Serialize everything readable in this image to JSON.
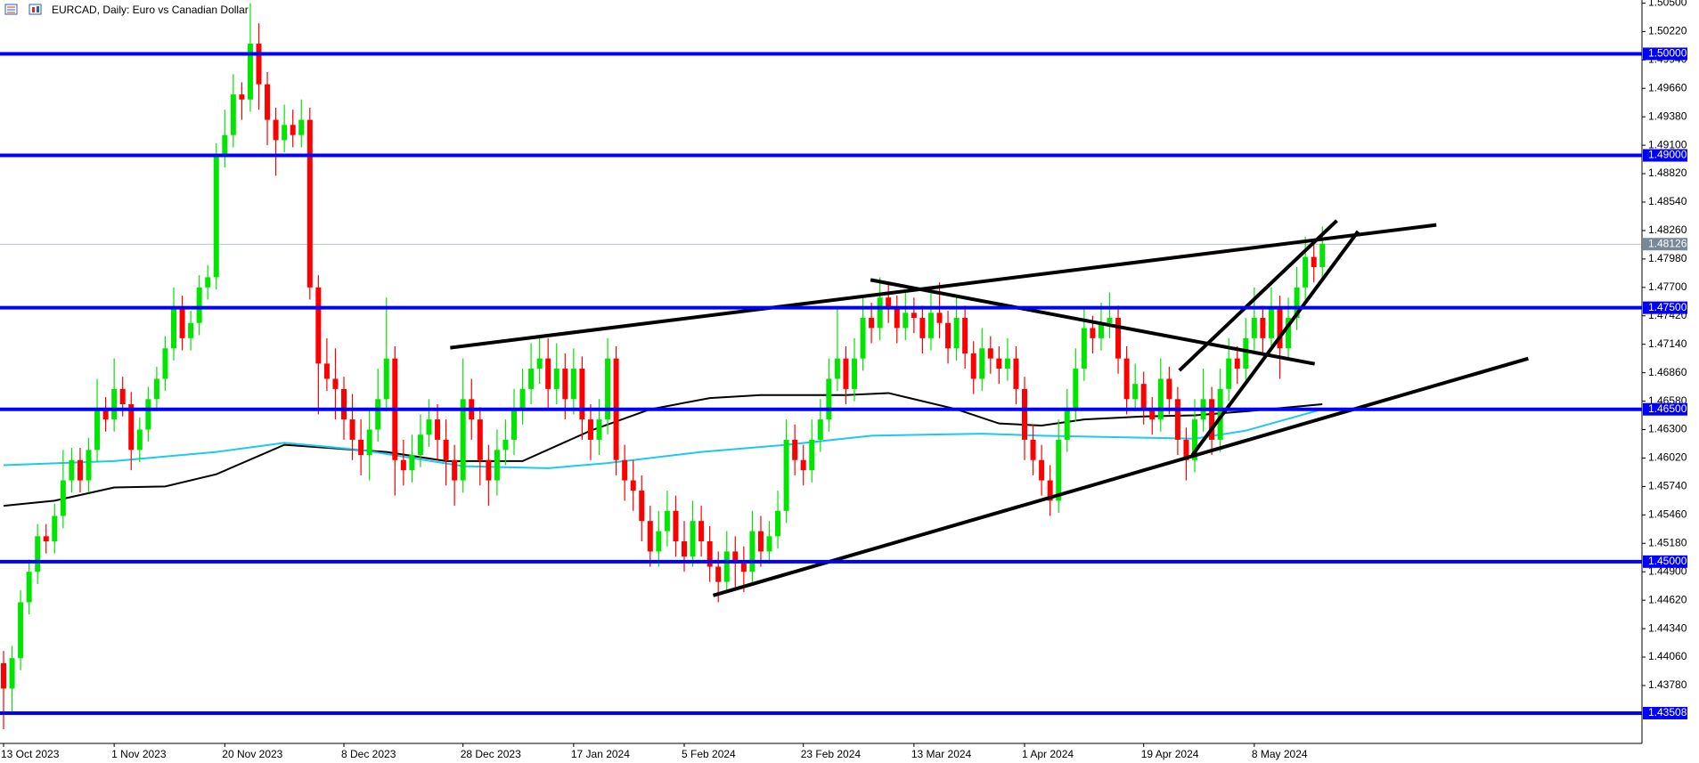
{
  "chart_data": {
    "type": "candlestick",
    "title": "EURCAD, Daily:  Euro vs Canadian Dollar",
    "categories": [
      "13 Oct 2023",
      null,
      null,
      null,
      null,
      null,
      null,
      null,
      null,
      null,
      null,
      null,
      null,
      "1 Nov 2023",
      null,
      null,
      null,
      null,
      null,
      null,
      null,
      null,
      null,
      null,
      null,
      null,
      "20 Nov 2023",
      null,
      null,
      null,
      null,
      null,
      null,
      null,
      null,
      null,
      null,
      null,
      null,
      null,
      "8 Dec 2023",
      null,
      null,
      null,
      null,
      null,
      null,
      null,
      null,
      null,
      null,
      null,
      null,
      null,
      "28 Dec 2023",
      null,
      null,
      null,
      null,
      null,
      null,
      null,
      null,
      null,
      null,
      null,
      null,
      "17 Jan 2024",
      null,
      null,
      null,
      null,
      null,
      null,
      null,
      null,
      null,
      null,
      null,
      null,
      "5 Feb 2024",
      null,
      null,
      null,
      null,
      null,
      null,
      null,
      null,
      null,
      null,
      null,
      null,
      null,
      "23 Feb 2024",
      null,
      null,
      null,
      null,
      null,
      null,
      null,
      null,
      null,
      null,
      null,
      null,
      "13 Mar 2024",
      null,
      null,
      null,
      null,
      null,
      null,
      null,
      null,
      null,
      null,
      null,
      null,
      "1 Apr 2024",
      null,
      null,
      null,
      null,
      null,
      null,
      null,
      null,
      null,
      null,
      null,
      null,
      null,
      "19 Apr 2024",
      null,
      null,
      null,
      null,
      null,
      null,
      null,
      null,
      null,
      null,
      null,
      null,
      "8 May 2024",
      null,
      null,
      null,
      null,
      null,
      null,
      null,
      null
    ],
    "candles": {
      "open": [
        1.44,
        1.4375,
        1.4405,
        1.446,
        1.449,
        1.4525,
        1.452,
        1.4545,
        1.458,
        1.46,
        1.458,
        1.461,
        1.465,
        1.464,
        1.467,
        1.4655,
        1.461,
        1.463,
        1.466,
        1.468,
        1.471,
        1.475,
        1.472,
        1.4735,
        1.477,
        1.478,
        1.49,
        1.492,
        1.496,
        1.4955,
        1.501,
        1.497,
        1.4935,
        1.4915,
        1.493,
        1.492,
        1.4935,
        1.477,
        1.4695,
        1.468,
        1.467,
        1.464,
        1.462,
        1.4605,
        1.463,
        1.466,
        1.47,
        1.46,
        1.459,
        1.4605,
        1.4625,
        1.464,
        1.462,
        1.46,
        1.458,
        1.466,
        1.464,
        1.46,
        1.458,
        1.461,
        1.462,
        1.465,
        1.467,
        1.469,
        1.47,
        1.467,
        1.469,
        1.466,
        1.469,
        1.464,
        1.462,
        1.464,
        1.47,
        1.46,
        1.458,
        1.457,
        1.454,
        1.451,
        1.453,
        1.455,
        1.452,
        1.4505,
        1.454,
        1.452,
        1.4495,
        1.448,
        1.451,
        1.45,
        1.449,
        1.453,
        1.451,
        1.4525,
        1.455,
        1.462,
        1.46,
        1.459,
        1.462,
        1.464,
        1.468,
        1.47,
        1.467,
        1.47,
        1.474,
        1.473,
        1.476,
        1.475,
        1.473,
        1.4745,
        1.474,
        1.472,
        1.4745,
        1.4735,
        1.471,
        1.474,
        1.4705,
        1.468,
        1.471,
        1.47,
        1.469,
        1.47,
        1.467,
        1.462,
        1.46,
        1.458,
        1.456,
        1.462,
        1.465,
        1.469,
        1.473,
        1.472,
        1.4735,
        1.474,
        1.47,
        1.466,
        1.4675,
        1.465,
        1.464,
        1.468,
        1.466,
        1.462,
        1.46,
        1.464,
        1.466,
        1.462,
        1.467,
        1.47,
        1.469,
        1.472,
        1.474,
        1.472,
        1.475,
        1.471,
        1.474,
        1.477,
        1.48,
        1.479
      ],
      "high": [
        1.4412,
        1.4417,
        1.4472,
        1.4502,
        1.4537,
        1.4537,
        1.4557,
        1.461,
        1.4612,
        1.4612,
        1.4622,
        1.468,
        1.4662,
        1.47,
        1.4682,
        1.4667,
        1.4642,
        1.4672,
        1.4692,
        1.4722,
        1.477,
        1.4762,
        1.4747,
        1.4782,
        1.4792,
        1.4912,
        1.4945,
        1.498,
        1.4972,
        1.505,
        1.503,
        1.4982,
        1.4947,
        1.495,
        1.4945,
        1.4955,
        1.4947,
        1.4782,
        1.472,
        1.471,
        1.4682,
        1.4665,
        1.464,
        1.465,
        1.469,
        1.476,
        1.4712,
        1.462,
        1.4625,
        1.4645,
        1.466,
        1.4655,
        1.464,
        1.4615,
        1.47,
        1.468,
        1.4652,
        1.4615,
        1.463,
        1.464,
        1.467,
        1.469,
        1.4715,
        1.472,
        1.472,
        1.4715,
        1.4705,
        1.471,
        1.4702,
        1.4655,
        1.466,
        1.472,
        1.4712,
        1.4615,
        1.46,
        1.4585,
        1.4555,
        1.455,
        1.457,
        1.4565,
        1.454,
        1.456,
        1.4555,
        1.4535,
        1.451,
        1.453,
        1.4525,
        1.4515,
        1.455,
        1.4545,
        1.454,
        1.457,
        1.464,
        1.4635,
        1.4615,
        1.464,
        1.466,
        1.47,
        1.475,
        1.4712,
        1.472,
        1.476,
        1.4755,
        1.478,
        1.4775,
        1.4762,
        1.4765,
        1.476,
        1.4752,
        1.4765,
        1.4775,
        1.4747,
        1.476,
        1.4752,
        1.4717,
        1.473,
        1.4722,
        1.4712,
        1.472,
        1.4712,
        1.4682,
        1.4635,
        1.4615,
        1.4595,
        1.464,
        1.467,
        1.471,
        1.475,
        1.4742,
        1.4755,
        1.4765,
        1.4752,
        1.4712,
        1.4695,
        1.4687,
        1.4662,
        1.47,
        1.4692,
        1.4672,
        1.4632,
        1.466,
        1.469,
        1.4672,
        1.469,
        1.472,
        1.4712,
        1.474,
        1.477,
        1.4752,
        1.477,
        1.4762,
        1.476,
        1.479,
        1.482,
        1.4815,
        1.483
      ],
      "low": [
        1.4335,
        1.435,
        1.4393,
        1.4448,
        1.4478,
        1.4508,
        1.4508,
        1.4533,
        1.4568,
        1.4568,
        1.4568,
        1.4598,
        1.4628,
        1.4628,
        1.4643,
        1.459,
        1.4598,
        1.4618,
        1.4648,
        1.4668,
        1.4698,
        1.4708,
        1.4708,
        1.4723,
        1.4758,
        1.4768,
        1.4888,
        1.4908,
        1.4935,
        1.4943,
        1.4945,
        1.491,
        1.488,
        1.4903,
        1.4908,
        1.4908,
        1.4758,
        1.4645,
        1.4668,
        1.464,
        1.462,
        1.46,
        1.4585,
        1.458,
        1.4618,
        1.4648,
        1.4565,
        1.4575,
        1.4578,
        1.4593,
        1.4613,
        1.46,
        1.4575,
        1.4555,
        1.4568,
        1.462,
        1.4575,
        1.4555,
        1.4565,
        1.4595,
        1.4605,
        1.4635,
        1.4655,
        1.4675,
        1.465,
        1.4655,
        1.464,
        1.4645,
        1.462,
        1.46,
        1.4605,
        1.4625,
        1.4585,
        1.456,
        1.455,
        1.452,
        1.4495,
        1.4495,
        1.4515,
        1.4505,
        1.449,
        1.4495,
        1.4505,
        1.448,
        1.446,
        1.447,
        1.4475,
        1.447,
        1.4478,
        1.4495,
        1.4498,
        1.4513,
        1.4538,
        1.4585,
        1.4575,
        1.4578,
        1.4608,
        1.4628,
        1.4668,
        1.4655,
        1.4658,
        1.4688,
        1.4715,
        1.4718,
        1.4735,
        1.4715,
        1.4718,
        1.4725,
        1.4705,
        1.4708,
        1.472,
        1.4695,
        1.4698,
        1.469,
        1.4665,
        1.4668,
        1.4685,
        1.4675,
        1.4678,
        1.4655,
        1.46,
        1.4585,
        1.4565,
        1.4545,
        1.4548,
        1.4608,
        1.4638,
        1.4678,
        1.4705,
        1.4708,
        1.472,
        1.4685,
        1.4645,
        1.4648,
        1.4635,
        1.4625,
        1.4628,
        1.4645,
        1.4605,
        1.458,
        1.4588,
        1.4628,
        1.4605,
        1.4608,
        1.4658,
        1.4675,
        1.4678,
        1.4708,
        1.4705,
        1.4708,
        1.468,
        1.4698,
        1.4728,
        1.4758,
        1.4775,
        1.4778
      ],
      "close": [
        1.4375,
        1.4405,
        1.446,
        1.449,
        1.4525,
        1.452,
        1.4545,
        1.458,
        1.46,
        1.458,
        1.461,
        1.465,
        1.464,
        1.467,
        1.4655,
        1.461,
        1.463,
        1.466,
        1.468,
        1.471,
        1.475,
        1.472,
        1.4735,
        1.477,
        1.478,
        1.49,
        1.492,
        1.496,
        1.4955,
        1.501,
        1.497,
        1.4935,
        1.4915,
        1.493,
        1.492,
        1.4935,
        1.477,
        1.4695,
        1.468,
        1.467,
        1.464,
        1.462,
        1.4605,
        1.463,
        1.466,
        1.47,
        1.46,
        1.459,
        1.4605,
        1.4625,
        1.464,
        1.462,
        1.46,
        1.458,
        1.466,
        1.464,
        1.46,
        1.458,
        1.461,
        1.462,
        1.465,
        1.467,
        1.469,
        1.47,
        1.467,
        1.469,
        1.466,
        1.469,
        1.464,
        1.462,
        1.464,
        1.47,
        1.46,
        1.458,
        1.457,
        1.454,
        1.451,
        1.453,
        1.455,
        1.452,
        1.4505,
        1.454,
        1.452,
        1.4495,
        1.448,
        1.451,
        1.45,
        1.449,
        1.453,
        1.451,
        1.4525,
        1.455,
        1.462,
        1.46,
        1.459,
        1.462,
        1.464,
        1.468,
        1.47,
        1.467,
        1.47,
        1.474,
        1.473,
        1.476,
        1.475,
        1.473,
        1.4745,
        1.474,
        1.472,
        1.4745,
        1.4735,
        1.471,
        1.474,
        1.4705,
        1.468,
        1.471,
        1.47,
        1.469,
        1.47,
        1.467,
        1.462,
        1.46,
        1.458,
        1.456,
        1.462,
        1.465,
        1.469,
        1.473,
        1.472,
        1.4735,
        1.474,
        1.47,
        1.466,
        1.4675,
        1.465,
        1.464,
        1.468,
        1.466,
        1.462,
        1.46,
        1.464,
        1.466,
        1.462,
        1.467,
        1.47,
        1.469,
        1.472,
        1.474,
        1.472,
        1.475,
        1.471,
        1.474,
        1.477,
        1.48,
        1.479,
        1.4813
      ]
    },
    "up_color": "#00e600",
    "down_color": "#ff0000",
    "ylim": [
      1.4321,
      1.5053
    ],
    "yticks": [
      {
        "value": 1.505,
        "label": "1.50500"
      },
      {
        "value": 1.5022,
        "label": "1.50220"
      },
      {
        "value": 1.4994,
        "label": "1.49940"
      },
      {
        "value": 1.4966,
        "label": "1.49660"
      },
      {
        "value": 1.4938,
        "label": "1.49380"
      },
      {
        "value": 1.491,
        "label": "1.49100"
      },
      {
        "value": 1.4882,
        "label": "1.48820"
      },
      {
        "value": 1.4854,
        "label": "1.48540"
      },
      {
        "value": 1.4826,
        "label": "1.48260"
      },
      {
        "value": 1.4798,
        "label": "1.47980"
      },
      {
        "value": 1.477,
        "label": "1.47700"
      },
      {
        "value": 1.4742,
        "label": "1.47420"
      },
      {
        "value": 1.4714,
        "label": "1.47140"
      },
      {
        "value": 1.4686,
        "label": "1.46860"
      },
      {
        "value": 1.4658,
        "label": "1.46580"
      },
      {
        "value": 1.463,
        "label": "1.46300"
      },
      {
        "value": 1.4602,
        "label": "1.46020"
      },
      {
        "value": 1.4574,
        "label": "1.45740"
      },
      {
        "value": 1.4546,
        "label": "1.45460"
      },
      {
        "value": 1.4518,
        "label": "1.45180"
      },
      {
        "value": 1.449,
        "label": "1.44900"
      },
      {
        "value": 1.4462,
        "label": "1.44620"
      },
      {
        "value": 1.4434,
        "label": "1.44340"
      },
      {
        "value": 1.4406,
        "label": "1.44060"
      },
      {
        "value": 1.4378,
        "label": "1.43780"
      }
    ],
    "levels": [
      {
        "value": 1.5,
        "label": "1.50000"
      },
      {
        "value": 1.49,
        "label": "1.49000"
      },
      {
        "value": 1.475,
        "label": "1.47500"
      },
      {
        "value": 1.465,
        "label": "1.46500"
      },
      {
        "value": 1.45,
        "label": "1.45000"
      },
      {
        "value": 1.43508,
        "label": "1.43508"
      }
    ],
    "level_color": "#0000ff",
    "current_price": {
      "value": 1.48126,
      "label": "1.48126"
    },
    "moving_averages": [
      {
        "color": "#000000",
        "x": [
          0,
          6,
          13,
          19,
          25,
          33,
          45,
          52,
          61,
          69,
          76,
          83,
          89,
          99,
          104,
          112,
          117,
          122,
          127,
          134,
          140,
          146,
          155
        ],
        "values": [
          1.4555,
          1.456,
          1.4573,
          1.4574,
          1.4586,
          1.4615,
          1.4608,
          1.4599,
          1.4599,
          1.4629,
          1.465,
          1.4661,
          1.4664,
          1.4664,
          1.4666,
          1.465,
          1.4636,
          1.4634,
          1.464,
          1.4643,
          1.4644,
          1.4648,
          1.4655
        ]
      },
      {
        "color": "#1ec8f0",
        "x": [
          0,
          13,
          25,
          33,
          42,
          54,
          64,
          71,
          82,
          92,
          102,
          115,
          122,
          134,
          140,
          146,
          155
        ],
        "values": [
          1.4595,
          1.4599,
          1.4608,
          1.4617,
          1.461,
          1.4594,
          1.4592,
          1.4597,
          1.4608,
          1.4615,
          1.4624,
          1.4626,
          1.4624,
          1.4622,
          1.4621,
          1.4629,
          1.465
        ]
      }
    ],
    "trendlines": [
      {
        "x": [
          52.5,
          168.4
        ],
        "y": [
          1.47106,
          1.48315
        ]
      },
      {
        "x": [
          101.9,
          154.1
        ],
        "y": [
          1.47774,
          1.46947
        ]
      },
      {
        "x": [
          83.4,
          179.2
        ],
        "y": [
          1.44667,
          1.47
        ]
      },
      {
        "x": [
          138.2,
          156.7
        ],
        "y": [
          1.46883,
          1.48358
        ]
      },
      {
        "x": [
          139.7,
          159.2
        ],
        "y": [
          1.46046,
          1.48252
        ]
      }
    ]
  }
}
